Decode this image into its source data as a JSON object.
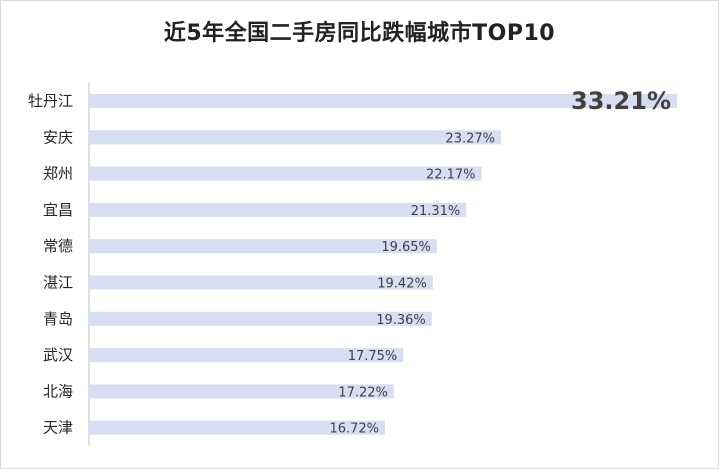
{
  "colors": {
    "bar": "#d6dff2",
    "axis": "#bfbfbf",
    "highlight_label": "#c00000",
    "label": "#404040"
  },
  "chart_data": {
    "type": "bar",
    "orientation": "horizontal",
    "title": "近5年全国二手房同比跌幅城市TOP10",
    "categories": [
      "牡丹江",
      "安庆",
      "郑州",
      "宜昌",
      "常德",
      "湛江",
      "青岛",
      "武汉",
      "北海",
      "天津"
    ],
    "values": [
      33.21,
      23.27,
      22.17,
      21.31,
      19.65,
      19.42,
      19.36,
      17.75,
      17.22,
      16.72
    ],
    "data_labels": [
      "33.21%",
      "23.27%",
      "22.17%",
      "21.31%",
      "19.65%",
      "19.42%",
      "19.36%",
      "17.75%",
      "17.22%",
      "16.72%"
    ],
    "highlight_index": 0,
    "xlim": [
      0,
      33.21
    ],
    "grid": false,
    "legend": "none"
  }
}
